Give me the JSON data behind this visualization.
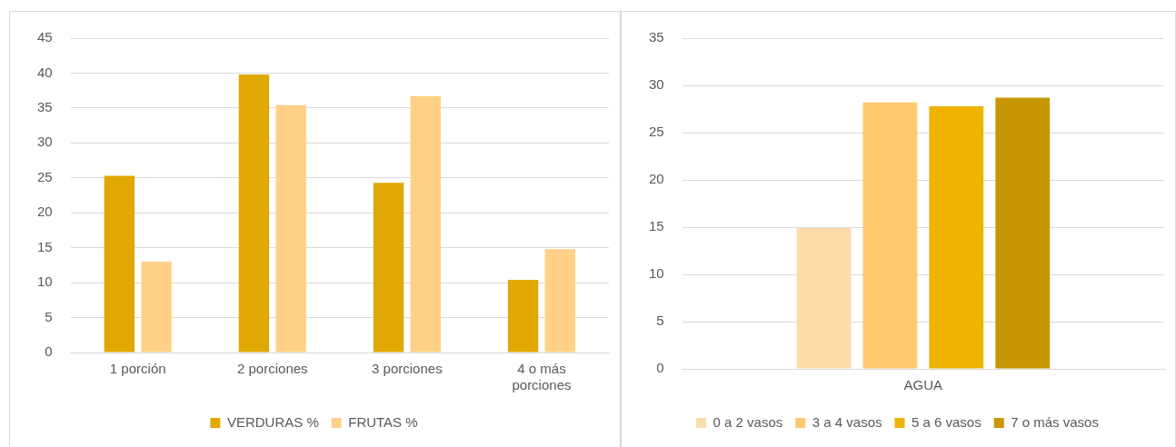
{
  "chart_data": [
    {
      "type": "bar",
      "categories": [
        "1 porción",
        "2 porciones",
        "3 porciones",
        "4 o más porciones"
      ],
      "series": [
        {
          "name": "VERDURAS %",
          "color": "#e0a800",
          "values": [
            25.3,
            39.8,
            24.3,
            10.4
          ]
        },
        {
          "name": "FRUTAS %",
          "color": "#ffd085",
          "values": [
            13.0,
            35.4,
            36.7,
            14.8
          ]
        }
      ],
      "ylim": [
        0,
        45
      ],
      "yticks": [
        0,
        5,
        10,
        15,
        20,
        25,
        30,
        35,
        40,
        45
      ],
      "grid": "y",
      "legend": "bottom"
    },
    {
      "type": "bar",
      "categories": [
        "AGUA"
      ],
      "series": [
        {
          "name": "0 a 2 vasos",
          "color": "#fddcaa",
          "values": [
            14.9
          ]
        },
        {
          "name": "3 a 4 vasos",
          "color": "#fdc96c",
          "values": [
            28.2
          ]
        },
        {
          "name": "5 a 6 vasos",
          "color": "#efb300",
          "values": [
            27.8
          ]
        },
        {
          "name": "7 o más vasos",
          "color": "#c99600",
          "values": [
            28.7
          ]
        }
      ],
      "ylim": [
        0,
        35
      ],
      "yticks": [
        0,
        5,
        10,
        15,
        20,
        25,
        30,
        35
      ],
      "grid": "y",
      "legend": "bottom"
    }
  ]
}
